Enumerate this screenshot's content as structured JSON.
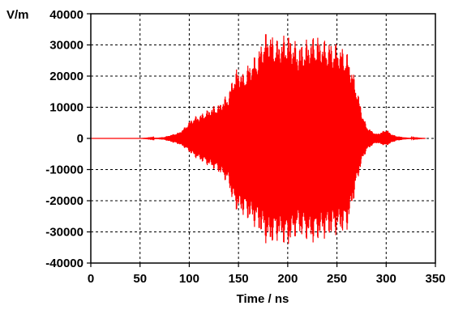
{
  "chart_data": {
    "type": "line",
    "title": "",
    "xlabel": "Time / ns",
    "ylabel": "V/m",
    "xlim": [
      0,
      350
    ],
    "ylim": [
      -40000,
      40000
    ],
    "x_ticks": [
      0,
      50,
      100,
      150,
      200,
      250,
      300,
      350
    ],
    "y_ticks": [
      40000,
      30000,
      20000,
      10000,
      0,
      -10000,
      -20000,
      -30000,
      -40000
    ],
    "x_tick_labels": [
      "0",
      "50",
      "100",
      "150",
      "200",
      "250",
      "300",
      "350"
    ],
    "y_tick_labels": [
      "40000",
      "30000",
      "20000",
      "10000",
      "0",
      "-10000",
      "-20000",
      "-30000",
      "-40000"
    ],
    "grid": true,
    "series": [
      {
        "color": "#ff0000",
        "style": "dense oscillation shown as envelope (upper / lower)",
        "x": [
          0,
          50,
          60,
          70,
          75,
          80,
          85,
          90,
          95,
          100,
          105,
          110,
          115,
          120,
          125,
          130,
          135,
          140,
          145,
          150,
          155,
          160,
          165,
          170,
          175,
          180,
          185,
          190,
          195,
          200,
          205,
          210,
          215,
          220,
          225,
          230,
          235,
          240,
          245,
          250,
          255,
          260,
          265,
          270,
          275,
          280,
          285,
          290,
          295,
          300,
          305,
          310,
          320,
          330,
          340
        ],
        "upper": [
          0,
          0,
          100,
          300,
          500,
          1000,
          1500,
          2000,
          3500,
          5500,
          7000,
          7500,
          8500,
          9500,
          10500,
          11000,
          13000,
          14500,
          21000,
          23000,
          21000,
          24000,
          26000,
          28000,
          33000,
          35000,
          33000,
          32000,
          33000,
          34000,
          32500,
          30000,
          31000,
          32000,
          33000,
          33000,
          32000,
          31500,
          31000,
          30500,
          29500,
          28000,
          23000,
          17000,
          9000,
          4000,
          2500,
          1500,
          2000,
          3000,
          1500,
          800,
          300,
          100,
          0
        ],
        "lower": [
          0,
          0,
          -100,
          -300,
          -500,
          -1000,
          -1500,
          -2000,
          -3000,
          -4500,
          -6000,
          -7000,
          -8000,
          -9000,
          -10000,
          -11000,
          -13000,
          -15000,
          -22000,
          -24000,
          -25000,
          -26500,
          -28000,
          -30000,
          -32000,
          -35000,
          -34000,
          -33000,
          -34000,
          -35000,
          -33000,
          -31000,
          -32000,
          -33000,
          -34000,
          -33000,
          -32500,
          -32000,
          -31500,
          -31000,
          -30500,
          -30000,
          -23000,
          -15000,
          -8000,
          -4000,
          -2500,
          -1500,
          -2000,
          -2500,
          -1500,
          -800,
          -300,
          -100,
          0
        ]
      }
    ]
  }
}
